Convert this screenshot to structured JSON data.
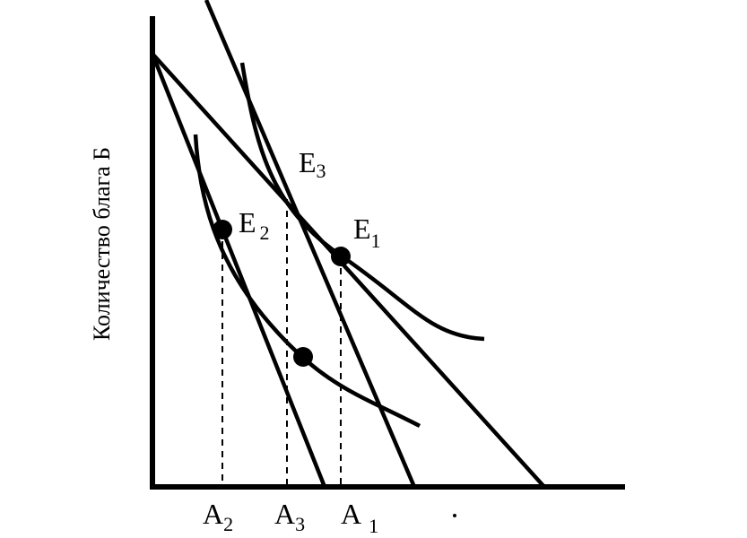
{
  "axes": {
    "y_label": "Количество блага Б"
  },
  "points": {
    "E1": {
      "letter": "E",
      "sub": "1"
    },
    "E2": {
      "letter": "E",
      "sub": "2"
    },
    "E3": {
      "letter": "E",
      "sub": "3"
    }
  },
  "ticks": {
    "A1": {
      "letter": "A",
      "sub": "1"
    },
    "A2": {
      "letter": "A",
      "sub": "2"
    },
    "A3": {
      "letter": "A",
      "sub": "3"
    }
  }
}
